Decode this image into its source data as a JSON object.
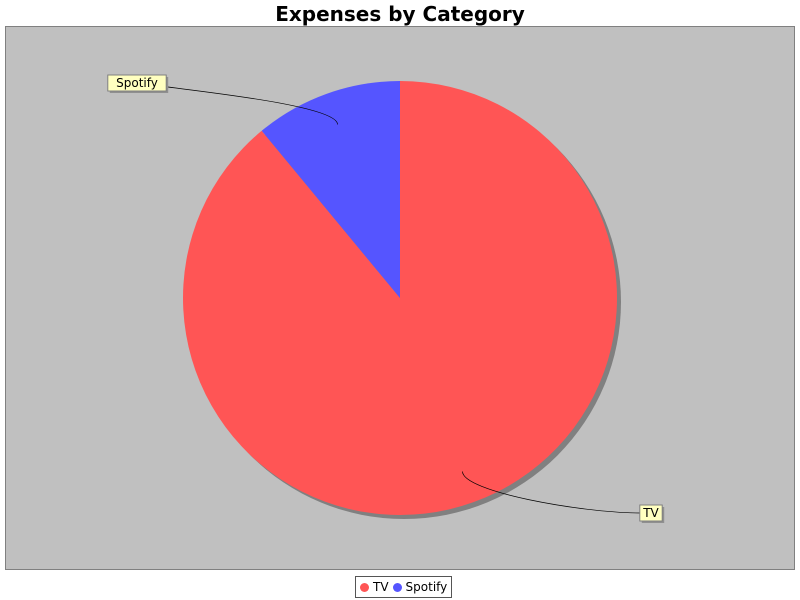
{
  "chart_data": {
    "type": "pie",
    "title": "Expenses by Category",
    "categories": [
      "TV",
      "Spotify"
    ],
    "values": [
      89,
      11
    ],
    "colors": [
      "#ff5555",
      "#5555ff"
    ],
    "labels": [
      "TV",
      "Spotify"
    ],
    "legend": "bottom",
    "plot_background": "#c0c0c0",
    "label_background": "#ffffc0"
  }
}
